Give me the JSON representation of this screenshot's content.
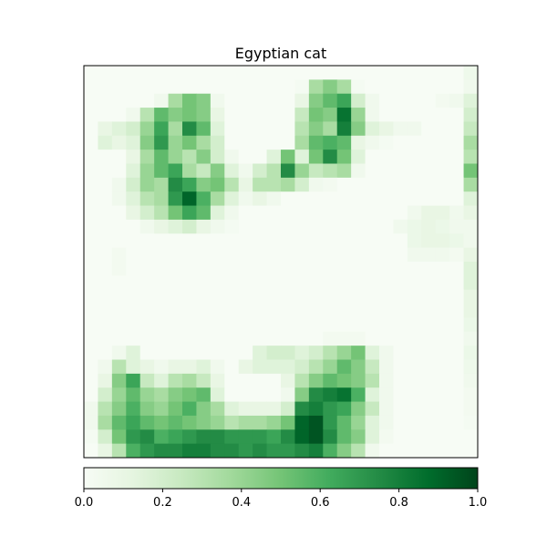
{
  "figure": {
    "title": "Egyptian cat"
  },
  "chart_data": {
    "type": "heatmap",
    "title": "Egyptian cat",
    "xlabel": "",
    "ylabel": "",
    "grid": false,
    "colormap": "Greens",
    "colormap_stops": [
      "#f7fcf5",
      "#e5f5e0",
      "#c7e9c0",
      "#a1d99b",
      "#74c476",
      "#41ab5d",
      "#238b45",
      "#006d2c",
      "#00441b"
    ],
    "vmin": 0.0,
    "vmax": 1.0,
    "colorbar": {
      "orientation": "horizontal",
      "ticks": [
        0.0,
        0.2,
        0.4,
        0.6,
        0.8,
        1.0
      ],
      "tick_labels": [
        "0.0",
        "0.2",
        "0.4",
        "0.6",
        "0.8",
        "1.0"
      ]
    },
    "grid_size": [
      28,
      28
    ],
    "values": [
      [
        0,
        0,
        0,
        0,
        0,
        0,
        0,
        0,
        0,
        0,
        0,
        0,
        0,
        0,
        0,
        0,
        0,
        0,
        0,
        0,
        0,
        0,
        0,
        0,
        0,
        0,
        0,
        0.06
      ],
      [
        0,
        0,
        0,
        0,
        0,
        0,
        0,
        0,
        0,
        0,
        0,
        0,
        0,
        0,
        0,
        0.02,
        0.35,
        0.45,
        0.35,
        0.02,
        0,
        0,
        0,
        0,
        0,
        0,
        0,
        0.05
      ],
      [
        0,
        0,
        0,
        0,
        0,
        0.05,
        0.35,
        0.5,
        0.45,
        0.05,
        0,
        0,
        0,
        0,
        0,
        0.1,
        0.45,
        0.55,
        0.65,
        0.2,
        0.05,
        0,
        0,
        0,
        0,
        0.03,
        0.05,
        0.15
      ],
      [
        0,
        0,
        0,
        0.05,
        0.3,
        0.55,
        0.45,
        0.5,
        0.45,
        0.1,
        0,
        0,
        0,
        0,
        0,
        0.25,
        0.5,
        0.45,
        0.85,
        0.4,
        0.05,
        0,
        0,
        0,
        0,
        0,
        0,
        0.2
      ],
      [
        0,
        0.1,
        0.15,
        0.2,
        0.4,
        0.65,
        0.35,
        0.75,
        0.55,
        0.15,
        0,
        0,
        0,
        0,
        0,
        0.3,
        0.45,
        0.35,
        0.8,
        0.45,
        0.15,
        0.1,
        0.05,
        0.05,
        0,
        0,
        0,
        0.25
      ],
      [
        0,
        0.15,
        0.1,
        0.15,
        0.45,
        0.7,
        0.4,
        0.5,
        0.35,
        0.2,
        0,
        0,
        0,
        0,
        0,
        0.35,
        0.55,
        0.6,
        0.55,
        0.1,
        0.05,
        0.02,
        0,
        0,
        0,
        0,
        0,
        0.35
      ],
      [
        0,
        0,
        0,
        0.1,
        0.35,
        0.55,
        0.4,
        0.3,
        0.45,
        0.2,
        0.05,
        0,
        0,
        0.15,
        0.5,
        0.15,
        0.5,
        0.75,
        0.5,
        0.15,
        0,
        0,
        0,
        0,
        0,
        0,
        0,
        0.3
      ],
      [
        0,
        0,
        0,
        0.15,
        0.4,
        0.55,
        0.65,
        0.35,
        0.25,
        0.45,
        0.15,
        0.05,
        0.2,
        0.3,
        0.75,
        0.4,
        0.25,
        0.3,
        0.35,
        0.05,
        0,
        0,
        0,
        0,
        0,
        0,
        0,
        0.5
      ],
      [
        0,
        0,
        0.05,
        0.2,
        0.4,
        0.35,
        0.75,
        0.65,
        0.45,
        0.5,
        0.3,
        0.1,
        0.3,
        0.3,
        0.35,
        0.2,
        0.05,
        0.03,
        0,
        0,
        0,
        0,
        0,
        0,
        0,
        0,
        0,
        0.35
      ],
      [
        0,
        0,
        0.05,
        0.15,
        0.3,
        0.35,
        0.7,
        0.9,
        0.6,
        0.35,
        0.15,
        0.05,
        0.1,
        0.05,
        0,
        0,
        0,
        0,
        0,
        0,
        0,
        0,
        0,
        0,
        0,
        0,
        0,
        0.15
      ],
      [
        0,
        0,
        0,
        0.1,
        0.2,
        0.3,
        0.5,
        0.65,
        0.55,
        0.15,
        0.05,
        0,
        0,
        0,
        0,
        0,
        0,
        0,
        0,
        0,
        0,
        0,
        0,
        0.05,
        0.1,
        0.1,
        0.05,
        0.1
      ],
      [
        0,
        0,
        0,
        0,
        0.05,
        0.1,
        0.15,
        0.2,
        0.1,
        0.05,
        0.02,
        0,
        0,
        0,
        0,
        0,
        0,
        0,
        0,
        0,
        0,
        0,
        0.05,
        0.08,
        0.1,
        0.08,
        0.05,
        0.05
      ],
      [
        0,
        0,
        0,
        0,
        0,
        0,
        0,
        0,
        0,
        0,
        0,
        0,
        0,
        0,
        0,
        0,
        0,
        0,
        0,
        0,
        0,
        0,
        0,
        0.08,
        0.1,
        0.1,
        0.08,
        0.05
      ],
      [
        0,
        0,
        0.03,
        0,
        0,
        0,
        0,
        0,
        0,
        0,
        0,
        0,
        0,
        0,
        0,
        0,
        0,
        0,
        0,
        0,
        0,
        0,
        0,
        0.05,
        0.05,
        0.05,
        0.03,
        0.1
      ],
      [
        0,
        0,
        0.03,
        0,
        0,
        0,
        0,
        0,
        0,
        0,
        0,
        0,
        0,
        0,
        0,
        0,
        0,
        0,
        0,
        0,
        0,
        0,
        0,
        0,
        0,
        0,
        0,
        0.15
      ],
      [
        0,
        0,
        0,
        0,
        0,
        0,
        0,
        0,
        0,
        0,
        0,
        0,
        0,
        0,
        0,
        0,
        0,
        0,
        0,
        0,
        0,
        0,
        0,
        0,
        0,
        0,
        0,
        0.15
      ],
      [
        0,
        0,
        0,
        0,
        0,
        0,
        0,
        0,
        0,
        0,
        0,
        0,
        0,
        0,
        0,
        0,
        0,
        0,
        0,
        0,
        0,
        0,
        0,
        0,
        0,
        0,
        0,
        0.1
      ],
      [
        0,
        0,
        0,
        0,
        0,
        0,
        0,
        0,
        0,
        0,
        0,
        0,
        0,
        0,
        0,
        0,
        0,
        0,
        0,
        0,
        0,
        0,
        0,
        0,
        0,
        0,
        0,
        0.1
      ],
      [
        0,
        0,
        0,
        0,
        0,
        0,
        0,
        0,
        0,
        0,
        0,
        0,
        0,
        0,
        0,
        0,
        0,
        0,
        0,
        0,
        0,
        0,
        0,
        0,
        0,
        0,
        0,
        0.08
      ],
      [
        0,
        0,
        0,
        0,
        0,
        0,
        0,
        0,
        0,
        0,
        0,
        0,
        0,
        0,
        0,
        0,
        0,
        0.03,
        0.03,
        0.03,
        0,
        0,
        0,
        0,
        0,
        0,
        0,
        0.05
      ],
      [
        0,
        0,
        0.05,
        0.15,
        0,
        0,
        0,
        0,
        0,
        0,
        0,
        0,
        0.15,
        0.2,
        0.2,
        0.15,
        0.2,
        0.3,
        0.4,
        0.5,
        0.15,
        0.05,
        0,
        0,
        0,
        0,
        0,
        0.08
      ],
      [
        0,
        0.05,
        0.3,
        0.15,
        0.1,
        0.05,
        0.1,
        0.1,
        0.15,
        0.05,
        0,
        0.1,
        0.15,
        0.15,
        0.15,
        0.2,
        0.3,
        0.4,
        0.55,
        0.45,
        0.25,
        0.05,
        0,
        0,
        0,
        0,
        0,
        0.06
      ],
      [
        0,
        0.1,
        0.45,
        0.65,
        0.25,
        0.15,
        0.3,
        0.35,
        0.25,
        0.1,
        0,
        0,
        0,
        0,
        0.1,
        0.3,
        0.45,
        0.55,
        0.5,
        0.45,
        0.3,
        0.05,
        0,
        0,
        0,
        0,
        0,
        0.05
      ],
      [
        0,
        0.2,
        0.4,
        0.55,
        0.4,
        0.35,
        0.45,
        0.5,
        0.55,
        0.15,
        0,
        0,
        0,
        0,
        0.05,
        0.45,
        0.75,
        0.8,
        0.85,
        0.6,
        0.15,
        0.05,
        0,
        0,
        0,
        0,
        0,
        0.03
      ],
      [
        0.05,
        0.3,
        0.45,
        0.6,
        0.45,
        0.4,
        0.5,
        0.6,
        0.45,
        0.35,
        0.15,
        0.1,
        0.1,
        0.1,
        0.2,
        0.75,
        0.8,
        0.7,
        0.65,
        0.45,
        0.25,
        0.05,
        0,
        0,
        0,
        0,
        0,
        0.03
      ],
      [
        0.05,
        0.35,
        0.55,
        0.65,
        0.55,
        0.5,
        0.55,
        0.5,
        0.45,
        0.4,
        0.3,
        0.35,
        0.35,
        0.4,
        0.5,
        0.9,
        0.95,
        0.7,
        0.55,
        0.4,
        0.15,
        0.05,
        0,
        0,
        0,
        0,
        0,
        0.02
      ],
      [
        0.02,
        0.2,
        0.5,
        0.7,
        0.75,
        0.6,
        0.65,
        0.7,
        0.75,
        0.75,
        0.7,
        0.7,
        0.7,
        0.65,
        0.75,
        0.9,
        0.95,
        0.75,
        0.55,
        0.45,
        0.15,
        0.03,
        0,
        0,
        0,
        0,
        0,
        0
      ],
      [
        0,
        0.1,
        0.3,
        0.6,
        0.7,
        0.75,
        0.75,
        0.8,
        0.8,
        0.75,
        0.75,
        0.7,
        0.75,
        0.7,
        0.7,
        0.75,
        0.8,
        0.6,
        0.45,
        0.3,
        0.05,
        0,
        0,
        0,
        0,
        0,
        0,
        0
      ]
    ]
  }
}
